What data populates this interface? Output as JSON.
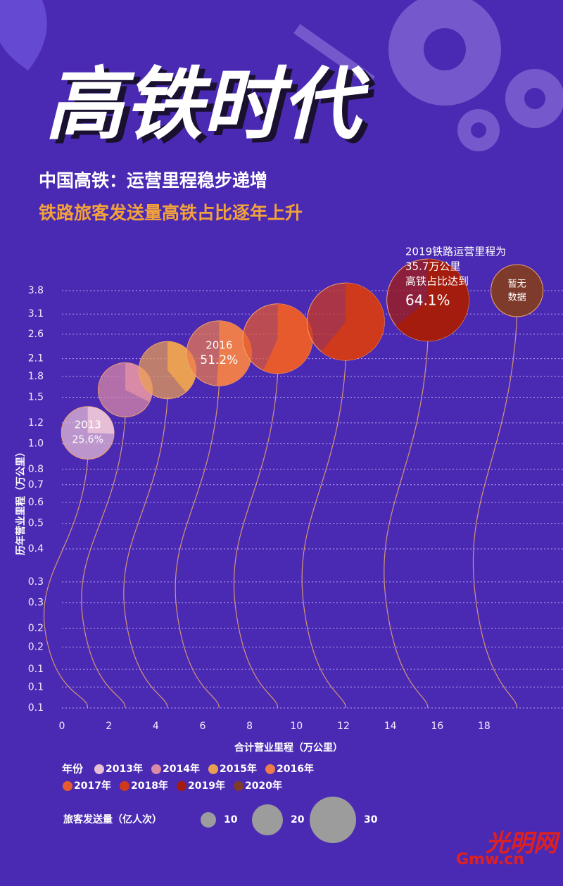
{
  "header": {
    "title": "高铁时代",
    "subtitle": "中国高铁：运营里程稳步递增",
    "subtitle2": "铁路旅客发送量高铁占比逐年上升"
  },
  "chart_data": {
    "type": "bubble",
    "categories": [
      "2013",
      "2014",
      "2015",
      "2016",
      "2017",
      "2018",
      "2019",
      "2020"
    ],
    "x": [
      1.1,
      2.7,
      4.5,
      6.7,
      9.2,
      12.1,
      15.6,
      19.4
    ],
    "y": [
      1.1,
      1.6,
      1.9,
      2.2,
      2.5,
      2.9,
      3.5,
      3.8
    ],
    "sizes": [
      34,
      35,
      37,
      42,
      45,
      50,
      53,
      null
    ],
    "shares": [
      25.6,
      32.4,
      38.9,
      51.2,
      56.8,
      60.9,
      64.1,
      null
    ],
    "share_labels": [
      "25.6%",
      null,
      null,
      "51.2%",
      null,
      null,
      "64.1%",
      null
    ],
    "colors": [
      "#e6bfd6",
      "#d98aa6",
      "#eaa052",
      "#ec7c4c",
      "#e65a2e",
      "#cf3a1c",
      "#a41c0e",
      "#7e3b2c"
    ],
    "x_label": "合计营业里程（万公里）",
    "y_label": "历年营业里程（万公里）",
    "xlim": [
      0,
      21.36
    ],
    "xticks": [
      0,
      2,
      4,
      6,
      8,
      10,
      12,
      14,
      16,
      18
    ],
    "y_scale": "log",
    "ylim": [
      0.1,
      3.8
    ],
    "yticks": [
      0.1,
      {
        "value": 0.12,
        "label": "0.1"
      },
      {
        "value": 0.14,
        "label": "0.1"
      },
      {
        "value": 0.17,
        "label": "0.2"
      },
      0.2,
      {
        "value": 0.25,
        "label": "0.3"
      },
      0.3,
      0.4,
      0.5,
      0.6,
      0.7,
      0.8,
      {
        "value": 1.0,
        "label": "1.0"
      },
      1.2,
      1.5,
      1.8,
      2.1,
      2.6,
      3.1,
      3.8
    ],
    "grid": true,
    "annotation_2019": [
      "2019铁路运营里程为",
      "35.7万公里",
      "高铁占比达到"
    ],
    "no_data_label": [
      "暂无",
      "数据"
    ],
    "legend_title": "年份",
    "legend_labels": [
      "2013年",
      "2014年",
      "2015年",
      "2016年",
      "2017年",
      "2018年",
      "2019年",
      "2020年"
    ],
    "size_legend": {
      "title": "旅客发送量（亿人次）",
      "values": [
        10,
        20,
        30
      ],
      "color": "#9c9c9c"
    }
  },
  "logo": {
    "text": "光明网",
    "url": "Gmw.cn"
  }
}
